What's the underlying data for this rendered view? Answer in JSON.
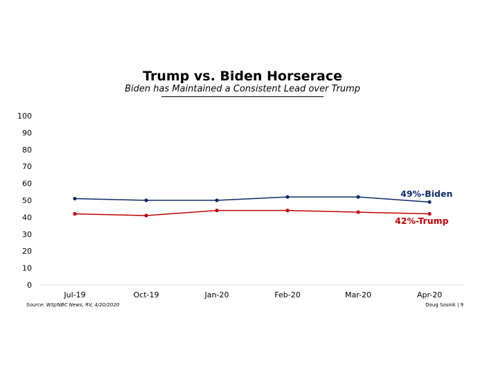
{
  "title": "Trump vs. Biden Horserace",
  "subtitle": "Biden has Maintained a Consistent Lead over Trump",
  "source": "Source: WSJ/NBC News, RV, 4/20/2020",
  "footer_right": "Doug Sosnik | 9",
  "chart_data": {
    "type": "line",
    "title": "Trump vs. Biden Horserace",
    "subtitle": "Biden has Maintained a Consistent Lead over Trump",
    "categories": [
      "Jul-19",
      "Oct-19",
      "Jan-20",
      "Feb-20",
      "Mar-20",
      "Apr-20"
    ],
    "ylim": [
      0,
      100
    ],
    "yticks": [
      0,
      10,
      20,
      30,
      40,
      50,
      60,
      70,
      80,
      90,
      100
    ],
    "grid": false,
    "series": [
      {
        "name": "Biden",
        "color": "#0d2a6b",
        "values": [
          51,
          50,
          50,
          52,
          52,
          49
        ],
        "end_label": "49%-Biden"
      },
      {
        "name": "Trump",
        "color": "#c00000",
        "values": [
          42,
          41,
          44,
          44,
          43,
          42
        ],
        "end_label": "42%-Trump"
      }
    ]
  }
}
